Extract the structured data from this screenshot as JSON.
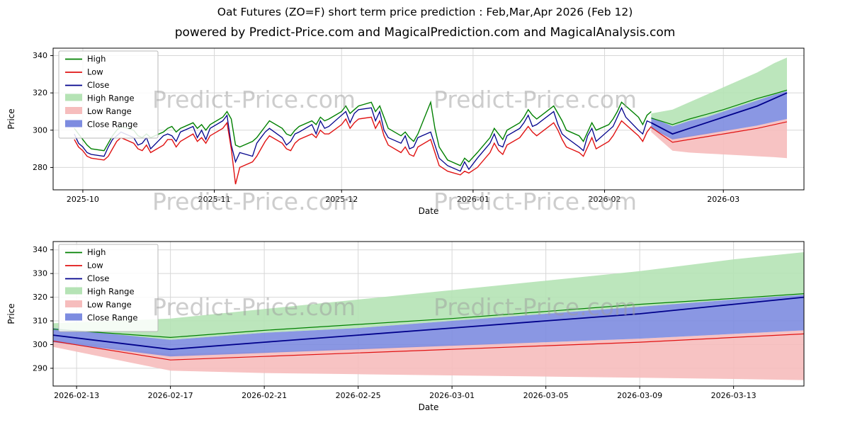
{
  "title": "Oat Futures (ZO=F) short term price prediction : Feb,Mar,Apr 2026 (Feb 12)",
  "subtitle": "powered by Predict-Price.com and MagicalPrediction.com and MagicalAnalysis.com",
  "watermark": "Predict-Price.com",
  "colors": {
    "high": "#008000",
    "low": "#e01212",
    "close": "#00008b",
    "high_range": "#b5e3b5",
    "low_range": "#f6bdbd",
    "close_range": "#7d8ce0",
    "grid": "#d7d7d7",
    "axis": "#000000",
    "watermark": "#9c9c9c"
  },
  "legend": [
    {
      "label": "High",
      "swatch": "line",
      "color": "high"
    },
    {
      "label": "Low",
      "swatch": "line",
      "color": "low"
    },
    {
      "label": "Close",
      "swatch": "line",
      "color": "close"
    },
    {
      "label": "High Range",
      "swatch": "patch",
      "color": "high_range"
    },
    {
      "label": "Low Range",
      "swatch": "patch",
      "color": "low_range"
    },
    {
      "label": "Close Range",
      "swatch": "patch",
      "color": "close_range"
    }
  ],
  "chart_data": [
    {
      "type": "line",
      "role": "history-and-forecast",
      "xlabel": "Date",
      "ylabel": "Price",
      "ylim": [
        268,
        344
      ],
      "yticks": [
        280,
        300,
        320,
        340
      ],
      "xdomain": [
        "2025-09-24",
        "2026-03-20"
      ],
      "xticks": [
        {
          "date": "2025-10-01",
          "label": "2025-10"
        },
        {
          "date": "2025-11-01",
          "label": "2025-11"
        },
        {
          "date": "2025-12-01",
          "label": "2025-12"
        },
        {
          "date": "2026-01-01",
          "label": "2026-01"
        },
        {
          "date": "2026-02-01",
          "label": "2026-02"
        },
        {
          "date": "2026-03-01",
          "label": "2026-03"
        }
      ],
      "hist": {
        "dates": [
          "2025-09-29",
          "2025-09-30",
          "2025-10-01",
          "2025-10-02",
          "2025-10-03",
          "2025-10-06",
          "2025-10-07",
          "2025-10-08",
          "2025-10-09",
          "2025-10-10",
          "2025-10-13",
          "2025-10-14",
          "2025-10-15",
          "2025-10-16",
          "2025-10-17",
          "2025-10-20",
          "2025-10-21",
          "2025-10-22",
          "2025-10-23",
          "2025-10-24",
          "2025-10-27",
          "2025-10-28",
          "2025-10-29",
          "2025-10-30",
          "2025-10-31",
          "2025-11-03",
          "2025-11-04",
          "2025-11-05",
          "2025-11-06",
          "2025-11-07",
          "2025-11-10",
          "2025-11-11",
          "2025-11-12",
          "2025-11-13",
          "2025-11-14",
          "2025-11-17",
          "2025-11-18",
          "2025-11-19",
          "2025-11-20",
          "2025-11-21",
          "2025-11-24",
          "2025-11-25",
          "2025-11-26",
          "2025-11-27",
          "2025-11-28",
          "2025-12-01",
          "2025-12-02",
          "2025-12-03",
          "2025-12-04",
          "2025-12-05",
          "2025-12-08",
          "2025-12-09",
          "2025-12-10",
          "2025-12-11",
          "2025-12-12",
          "2025-12-15",
          "2025-12-16",
          "2025-12-17",
          "2025-12-18",
          "2025-12-19",
          "2025-12-22",
          "2025-12-23",
          "2025-12-24",
          "2025-12-26",
          "2025-12-29",
          "2025-12-30",
          "2025-12-31",
          "2026-01-02",
          "2026-01-05",
          "2026-01-06",
          "2026-01-07",
          "2026-01-08",
          "2026-01-09",
          "2026-01-12",
          "2026-01-13",
          "2026-01-14",
          "2026-01-15",
          "2026-01-16",
          "2026-01-20",
          "2026-01-21",
          "2026-01-22",
          "2026-01-23",
          "2026-01-26",
          "2026-01-27",
          "2026-01-28",
          "2026-01-29",
          "2026-01-30",
          "2026-02-02",
          "2026-02-03",
          "2026-02-04",
          "2026-02-05",
          "2026-02-06",
          "2026-02-09",
          "2026-02-10",
          "2026-02-11",
          "2026-02-12"
        ],
        "high": [
          301,
          298,
          295,
          292,
          290,
          289,
          293,
          297,
          300,
          302,
          300,
          297,
          296,
          298,
          296,
          299,
          301,
          302,
          299,
          301,
          304,
          301,
          303,
          300,
          303,
          307,
          310,
          306,
          292,
          291,
          294,
          296,
          299,
          302,
          305,
          301,
          298,
          297,
          300,
          302,
          305,
          303,
          307,
          305,
          306,
          310,
          313,
          309,
          311,
          313,
          315,
          310,
          313,
          307,
          301,
          297,
          299,
          296,
          294,
          298,
          315,
          301,
          291,
          284,
          281,
          285,
          283,
          288,
          296,
          301,
          298,
          295,
          300,
          304,
          307,
          311,
          308,
          306,
          313,
          309,
          305,
          300,
          297,
          294,
          299,
          304,
          300,
          303,
          306,
          310,
          315,
          313,
          307,
          303,
          308,
          310
        ],
        "low": [
          295,
          291,
          289,
          286,
          285,
          284,
          286,
          290,
          294,
          296,
          293,
          290,
          289,
          292,
          288,
          292,
          295,
          295,
          291,
          294,
          298,
          294,
          296,
          293,
          297,
          301,
          304,
          290,
          271,
          280,
          283,
          286,
          290,
          294,
          297,
          293,
          290,
          289,
          293,
          295,
          298,
          296,
          300,
          298,
          298,
          303,
          306,
          301,
          304,
          306,
          307,
          301,
          305,
          297,
          292,
          288,
          291,
          287,
          286,
          291,
          295,
          288,
          281,
          278,
          276,
          278,
          277,
          280,
          288,
          293,
          289,
          287,
          292,
          296,
          299,
          302,
          299,
          297,
          304,
          300,
          295,
          291,
          288,
          286,
          291,
          296,
          290,
          294,
          297,
          301,
          305,
          303,
          297,
          294,
          299,
          302
        ],
        "close": [
          298,
          293,
          291,
          288,
          287,
          286,
          291,
          295,
          297,
          299,
          296,
          292,
          293,
          296,
          290,
          297,
          298,
          297,
          294,
          299,
          302,
          296,
          300,
          295,
          301,
          305,
          308,
          292,
          283,
          288,
          286,
          293,
          296,
          299,
          301,
          296,
          292,
          294,
          298,
          299,
          303,
          298,
          305,
          301,
          302,
          308,
          310,
          304,
          309,
          311,
          312,
          305,
          310,
          300,
          296,
          293,
          297,
          290,
          291,
          296,
          299,
          292,
          285,
          281,
          278,
          283,
          279,
          285,
          293,
          298,
          292,
          291,
          297,
          301,
          304,
          308,
          302,
          303,
          310,
          303,
          298,
          296,
          291,
          289,
          297,
          301,
          294,
          300,
          302,
          307,
          312,
          307,
          300,
          298,
          305,
          304
        ]
      },
      "pred": {
        "dates": [
          "2026-02-12",
          "2026-02-17",
          "2026-02-21",
          "2026-02-25",
          "2026-03-01",
          "2026-03-05",
          "2026-03-09",
          "2026-03-13",
          "2026-03-16"
        ],
        "high": [
          306.5,
          303,
          306,
          308.5,
          311,
          314,
          317,
          319.5,
          321.5
        ],
        "low": [
          301.5,
          293.5,
          295,
          296.5,
          298,
          299.5,
          301,
          303,
          304.5
        ],
        "close": [
          304,
          298,
          301,
          304,
          307,
          310,
          313,
          317,
          320
        ],
        "high_upper": [
          309,
          311,
          315,
          319,
          323,
          327,
          331,
          336,
          339
        ],
        "high_lower": [
          306,
          302,
          305,
          307,
          310,
          313,
          316,
          319,
          321
        ],
        "low_upper": [
          302,
          296,
          297,
          298.5,
          300,
          301,
          302.5,
          304.5,
          306
        ],
        "low_lower": [
          299,
          289,
          288,
          287.5,
          287,
          286.5,
          286,
          285.5,
          285
        ],
        "close_upper": [
          307,
          302,
          305,
          307,
          310,
          313,
          316,
          319,
          321
        ],
        "close_lower": [
          301,
          295,
          296.5,
          298,
          299.5,
          301,
          302.5,
          304.5,
          306
        ]
      }
    },
    {
      "type": "line",
      "role": "forecast-zoom",
      "xlabel": "Date",
      "ylabel": "Price",
      "ylim": [
        282.5,
        343.5
      ],
      "yticks": [
        290,
        300,
        310,
        320,
        330,
        340
      ],
      "xdomain": [
        "2026-02-12",
        "2026-03-16"
      ],
      "xticks": [
        {
          "date": "2026-02-13",
          "label": "2026-02-13"
        },
        {
          "date": "2026-02-17",
          "label": "2026-02-17"
        },
        {
          "date": "2026-02-21",
          "label": "2026-02-21"
        },
        {
          "date": "2026-02-25",
          "label": "2026-02-25"
        },
        {
          "date": "2026-03-01",
          "label": "2026-03-01"
        },
        {
          "date": "2026-03-05",
          "label": "2026-03-05"
        },
        {
          "date": "2026-03-09",
          "label": "2026-03-09"
        },
        {
          "date": "2026-03-13",
          "label": "2026-03-13"
        }
      ],
      "pred_source": 0
    }
  ]
}
